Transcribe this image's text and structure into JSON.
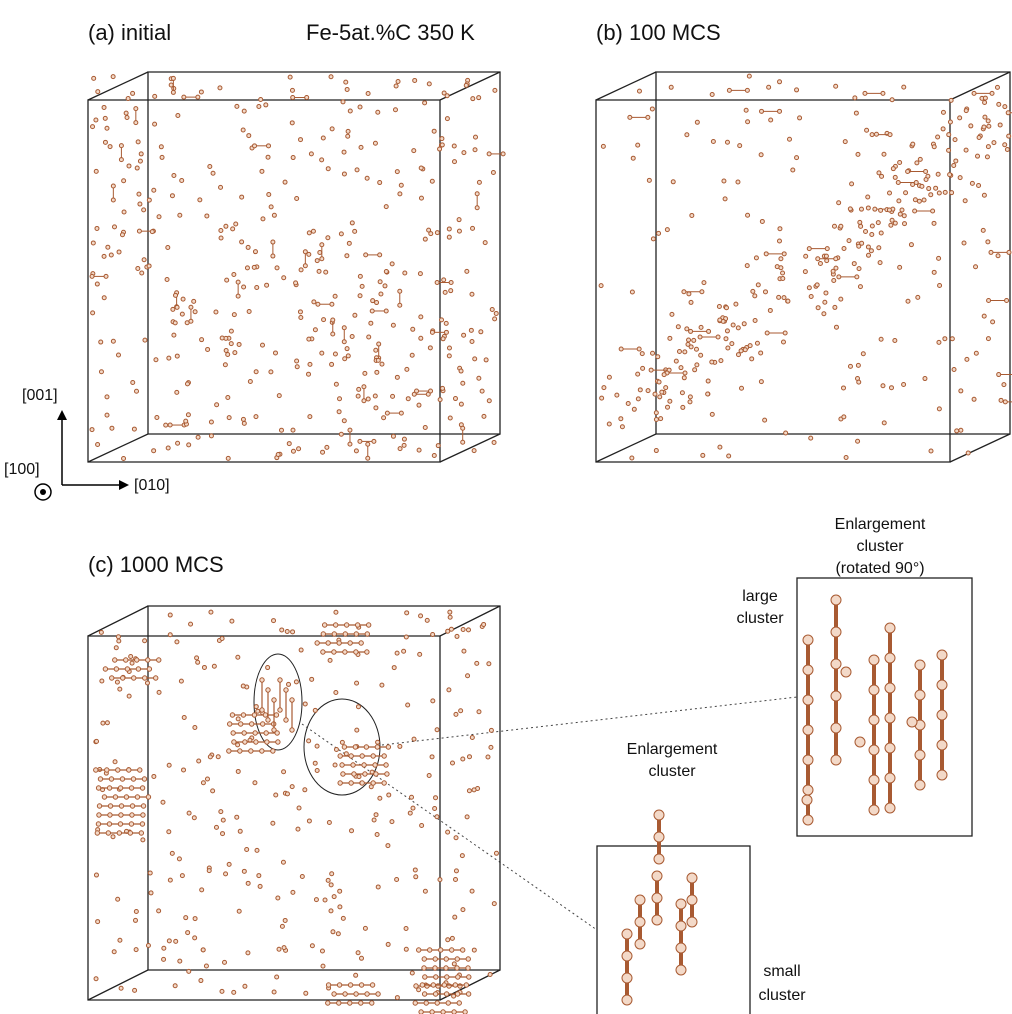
{
  "panels": [
    {
      "label": "(a) initial",
      "condition": "Fe-5at.%C 350 K"
    },
    {
      "label": "(b) 100 MCS"
    },
    {
      "label": "(c) 1000 MCS"
    }
  ],
  "axes": {
    "z": "[001]",
    "x": "[100]",
    "y": "[010]"
  },
  "insets": [
    {
      "title": [
        "Enlargement",
        "cluster",
        "(rotated 90°)"
      ],
      "caption": [
        "large",
        "cluster"
      ]
    },
    {
      "title": [
        "Enlargement",
        "cluster"
      ],
      "caption": [
        "small",
        "cluster"
      ]
    }
  ]
}
